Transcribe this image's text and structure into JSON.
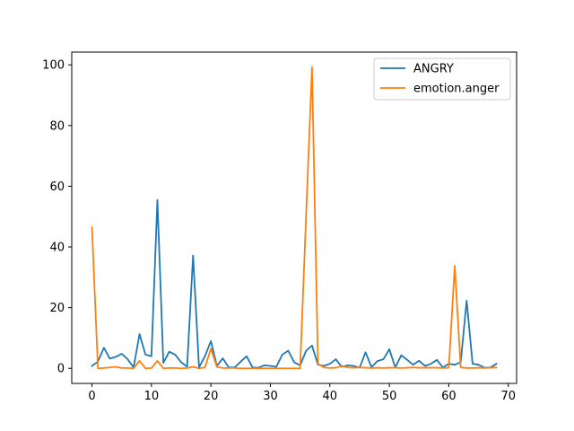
{
  "chart_data": {
    "type": "line",
    "title": "",
    "xlabel": "",
    "ylabel": "",
    "xlim": [
      -3.4,
      71.4
    ],
    "ylim": [
      -4.96,
      104.2
    ],
    "xticks": [
      0,
      10,
      20,
      30,
      40,
      50,
      60,
      70
    ],
    "yticks": [
      0,
      20,
      40,
      60,
      80,
      100
    ],
    "grid": false,
    "legend_position": "top-right",
    "x": [
      0,
      1,
      2,
      3,
      4,
      5,
      6,
      7,
      8,
      9,
      10,
      11,
      12,
      13,
      14,
      15,
      16,
      17,
      18,
      19,
      20,
      21,
      22,
      23,
      24,
      25,
      26,
      27,
      28,
      29,
      30,
      31,
      32,
      33,
      34,
      35,
      36,
      37,
      38,
      39,
      40,
      41,
      42,
      43,
      44,
      45,
      46,
      47,
      48,
      49,
      50,
      51,
      52,
      53,
      54,
      55,
      56,
      57,
      58,
      59,
      60,
      61,
      62,
      63,
      64,
      65,
      66,
      67,
      68
    ],
    "series": [
      {
        "name": "ANGRY",
        "color": "#1f77b4",
        "values": [
          0.8,
          2.2,
          6.8,
          3.2,
          3.8,
          4.8,
          3.0,
          0.3,
          11.3,
          4.5,
          4.0,
          55.5,
          1.8,
          5.5,
          4.5,
          2.0,
          0.6,
          37.2,
          0.3,
          4.0,
          9.0,
          0.8,
          3.3,
          0.3,
          0.3,
          2.2,
          4.0,
          0.3,
          0.2,
          1.0,
          0.8,
          0.5,
          4.5,
          5.8,
          2.0,
          1.0,
          5.8,
          7.5,
          1.2,
          0.8,
          1.5,
          3.0,
          0.5,
          1.0,
          0.8,
          0.2,
          5.3,
          0.4,
          2.4,
          3.0,
          6.3,
          0.3,
          4.3,
          2.8,
          1.2,
          2.5,
          0.8,
          1.5,
          2.8,
          0.3,
          1.5,
          1.2,
          2.0,
          22.3,
          1.5,
          1.2,
          0.2,
          0.3,
          1.5
        ]
      },
      {
        "name": "emotion.anger",
        "color": "#ff7f0e",
        "values": [
          46.5,
          0.0,
          0.1,
          0.3,
          0.5,
          0.1,
          0.1,
          0.0,
          2.5,
          0.0,
          0.1,
          2.5,
          0.0,
          0.1,
          0.1,
          0.0,
          0.1,
          0.5,
          0.0,
          0.3,
          6.5,
          0.5,
          0.1,
          0.1,
          0.1,
          0.0,
          0.0,
          0.0,
          0.0,
          0.0,
          0.0,
          0.0,
          0.0,
          0.0,
          0.0,
          0.0,
          50.0,
          99.2,
          1.5,
          0.3,
          0.1,
          0.2,
          0.8,
          0.3,
          0.2,
          0.3,
          0.2,
          0.1,
          0.2,
          0.1,
          0.2,
          0.2,
          0.1,
          0.2,
          0.3,
          0.2,
          0.2,
          0.2,
          0.2,
          0.1,
          0.2,
          33.8,
          0.3,
          0.1,
          0.1,
          0.2,
          0.1,
          0.2,
          0.3
        ]
      }
    ]
  }
}
